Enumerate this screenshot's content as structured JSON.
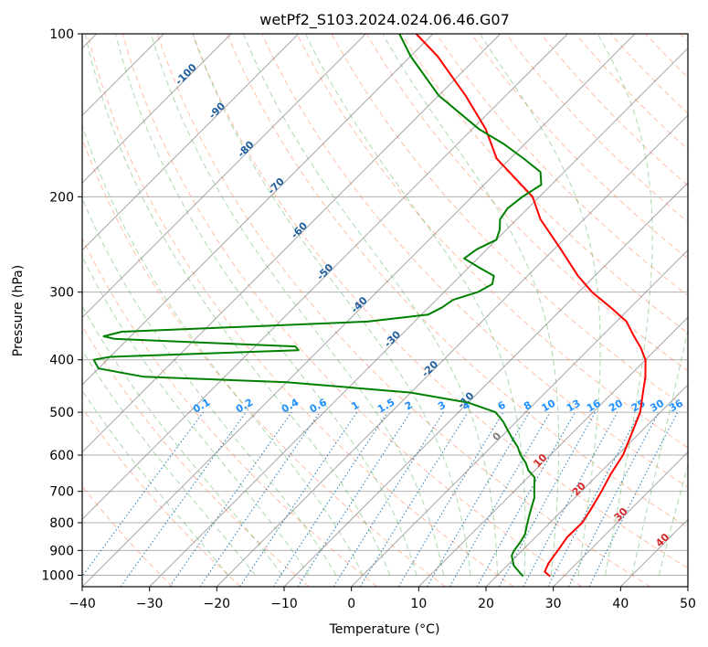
{
  "chart_data": {
    "type": "line",
    "title": "wetPf2_S103.2024.024.06.46.G07",
    "xlabel": "Temperature (°C)",
    "ylabel": "Pressure (hPa)",
    "xlim": [
      -40,
      50
    ],
    "ylim": [
      1050,
      100
    ],
    "y_scale": "log",
    "grid": true,
    "x_ticks": [
      -40,
      -30,
      -20,
      -10,
      0,
      10,
      20,
      30,
      40,
      50
    ],
    "y_ticks": [
      100,
      200,
      300,
      400,
      500,
      600,
      700,
      800,
      900,
      1000
    ],
    "skew": 1.0,
    "series": [
      {
        "color": "#ff0000",
        "pressure": [
          1005,
          985,
          950,
          900,
          850,
          800,
          750,
          700,
          650,
          600,
          550,
          500,
          460,
          430,
          400,
          380,
          360,
          340,
          320,
          300,
          280,
          250,
          220,
          200,
          170,
          150,
          130,
          110,
          100
        ],
        "values": [
          28.0,
          26.5,
          25.8,
          25.3,
          24.7,
          24.8,
          24.0,
          23.0,
          21.8,
          20.8,
          19.0,
          17.0,
          14.5,
          12.5,
          10.0,
          7.5,
          4.5,
          1.5,
          -3.0,
          -8.0,
          -12.5,
          -19.0,
          -26.5,
          -31.0,
          -42.0,
          -48.0,
          -56.0,
          -66.0,
          -72.5
        ]
      },
      {
        "color": "#008000",
        "pressure": [
          1005,
          990,
          960,
          920,
          900,
          870,
          840,
          810,
          780,
          750,
          720,
          690,
          660,
          640,
          620,
          600,
          580,
          560,
          540,
          520,
          500,
          480,
          460,
          440,
          430,
          415,
          400,
          395,
          390,
          384,
          378,
          372,
          366,
          362,
          355,
          350,
          340,
          330,
          320,
          310,
          300,
          290,
          280,
          270,
          260,
          250,
          240,
          230,
          220,
          210,
          200,
          190,
          180,
          170,
          160,
          150,
          130,
          110,
          100
        ],
        "values": [
          24.0,
          23.0,
          21.0,
          19.2,
          18.8,
          18.5,
          18.0,
          17.0,
          16.0,
          15.0,
          14.0,
          12.5,
          11.0,
          9.0,
          7.5,
          5.6,
          4.0,
          2.0,
          0.0,
          -2.0,
          -4.5,
          -10.0,
          -20.0,
          -40.0,
          -62.0,
          -70.0,
          -72.0,
          -70.0,
          -58.0,
          -43.0,
          -44.0,
          -58.0,
          -72.0,
          -74.0,
          -72.0,
          -60.0,
          -37.0,
          -29.0,
          -28.0,
          -27.5,
          -25.0,
          -24.0,
          -25.0,
          -28.5,
          -32.0,
          -31.5,
          -30.0,
          -31.0,
          -32.5,
          -33.0,
          -32.5,
          -31.5,
          -33.5,
          -38.0,
          -43.0,
          -49.0,
          -60.0,
          -70.0,
          -75.0
        ]
      }
    ],
    "isotherms_deg": [
      -120,
      -110,
      -100,
      -90,
      -80,
      -70,
      -60,
      -50,
      -40,
      -30,
      -20,
      -10,
      0,
      10,
      20,
      30,
      40,
      50
    ],
    "dry_adiabat_labels": [
      "-100",
      "-90",
      "-80",
      "-70",
      "-60",
      "-50",
      "-40",
      "-30",
      "-20",
      "-10"
    ],
    "isotherm_labels": [
      "0",
      "10",
      "20",
      "30",
      "40"
    ],
    "mixing_ratio_labels": [
      "0.1",
      "0.2",
      "0.4",
      "0.6",
      "1",
      "1.5",
      "2",
      "3",
      "4",
      "6",
      "8",
      "10",
      "13",
      "16",
      "20",
      "25",
      "30",
      "36"
    ],
    "mixing_ratio_values": [
      0.1,
      0.2,
      0.4,
      0.6,
      1,
      1.5,
      2,
      3,
      4,
      6,
      8,
      10,
      13,
      16,
      20,
      25,
      30,
      36
    ],
    "colors": {
      "temperature": "#ff0000",
      "dewpoint": "#008000",
      "dry_adiabat": "#ff7f50",
      "moist_adiabat": "#2ca02c",
      "mixing_ratio": "#1f77b4",
      "isotherm": "#808080",
      "dry_label": "#1f5f9f",
      "iso_label": "#d62728",
      "mix_label": "#1e90ff"
    }
  }
}
